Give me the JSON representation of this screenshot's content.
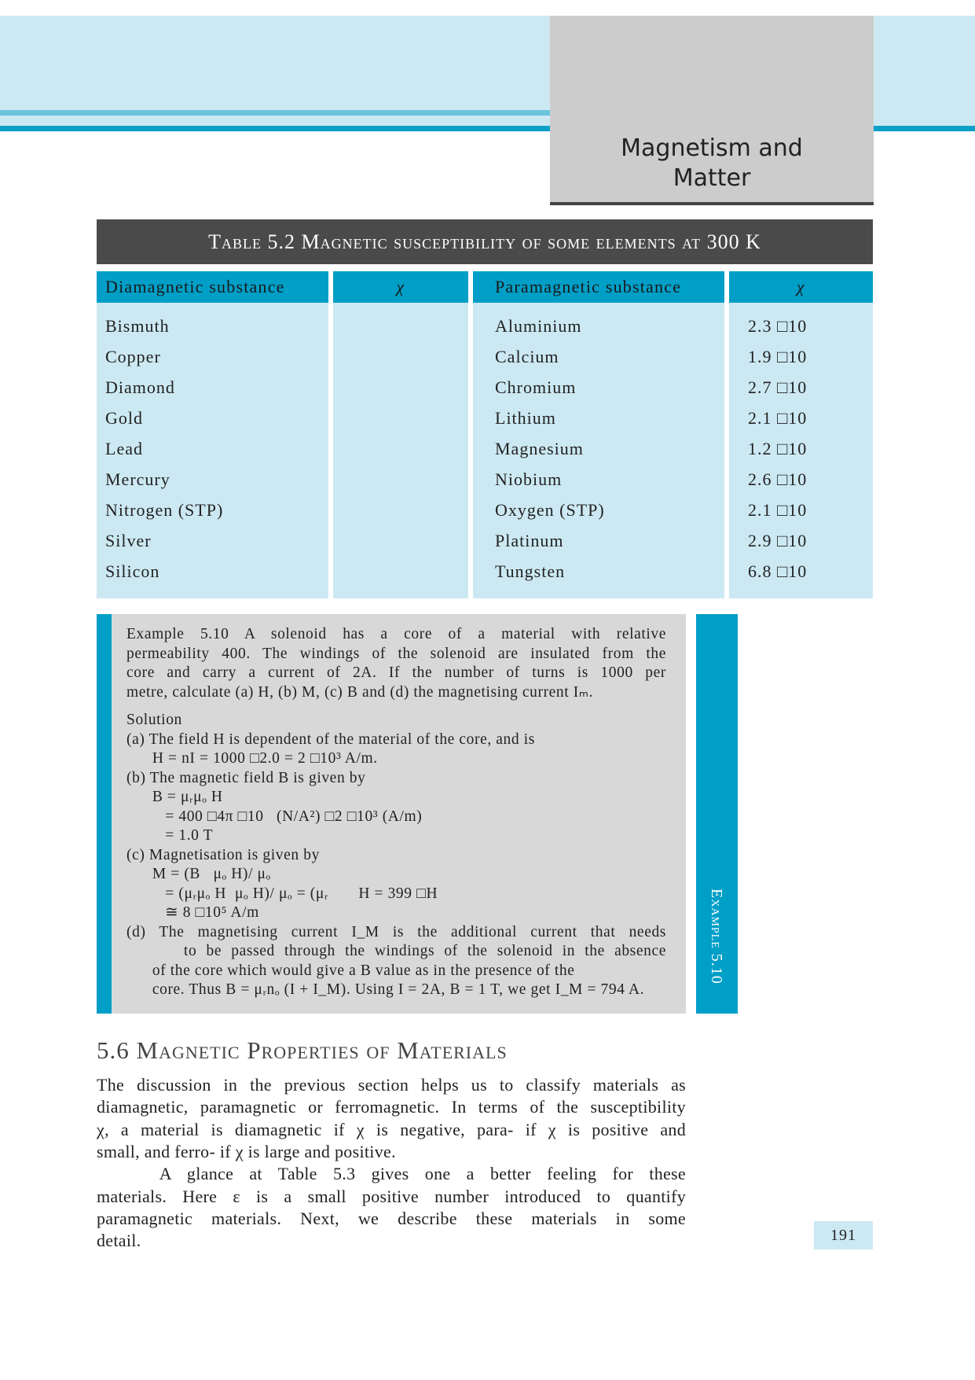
{
  "chapter": {
    "title_line1": "Magnetism and",
    "title_line2": "Matter"
  },
  "table": {
    "title": "Table 5.2  Magnetic susceptibility of some elements at 300 K",
    "headers": [
      "Diamagnetic substance",
      "χ",
      "Paramagnetic substance",
      "χ"
    ],
    "diamagnetic": [
      "Bismuth",
      "Copper",
      "Diamond",
      "Gold",
      "Lead",
      "Mercury",
      "Nitrogen (STP)",
      "Silver",
      "Silicon"
    ],
    "diamagnetic_chi": [
      "",
      "",
      "",
      "",
      "",
      "",
      "",
      "",
      ""
    ],
    "paramagnetic": [
      "Aluminium",
      "Calcium",
      "Chromium",
      "Lithium",
      "Magnesium",
      "Niobium",
      "Oxygen (STP)",
      "Platinum",
      "Tungsten"
    ],
    "paramagnetic_chi": [
      "2.3 □10",
      "1.9 □10",
      "2.7 □10",
      "2.1 □10",
      "1.2 □10",
      "2.6 □10",
      "2.1 □10",
      "2.9 □10",
      "6.8 □10"
    ]
  },
  "example": {
    "side_label": "Example 5.10",
    "question_lines": [
      "Example 5.10 A solenoid has a core of a material with relative",
      "permeability 400. The windings of the solenoid are insulated from the",
      "core and carry a current of 2A. If the number of turns is 1000 per",
      "metre, calculate (a) H, (b) M, (c) B and (d) the magnetising current Iₘ."
    ],
    "solution_label": "Solution",
    "solution_lines": [
      "(a) The field H is dependent of the material of the core, and is",
      "      H = nI = 1000 □2.0 = 2 □10³ A/m.",
      "(b) The magnetic field B is given by",
      "      B = μᵣμₒ H",
      "         = 400 □4π □10   (N/A²) □2 □10³ (A/m)",
      "         = 1.0 T",
      "(c) Magnetisation is given by",
      "      M = (B   μₒ H)/ μₒ",
      "         = (μᵣμₒ H  μₒ H)/ μₒ = (μᵣ       H = 399 □H",
      "         ≅ 8 □10⁵ A/m",
      "(d) The magnetising current I_M is the additional current that needs",
      "      to be passed through the windings of the solenoid in the absence",
      "      of the core which would give a B value as in the presence of the",
      "      core. Thus B = μᵣnₒ (I + I_M). Using I = 2A, B = 1 T, we get I_M = 794 A."
    ]
  },
  "section": {
    "heading": "5.6  Magnetic Properties of Materials",
    "lines": [
      "The discussion in the previous section helps us to classify materials as",
      "diamagnetic, paramagnetic or ferromagnetic. In terms of the susceptibility",
      "χ, a material is diamagnetic if χ is negative, para- if χ is positive and",
      "small, and ferro- if χ is large and positive.",
      "    A glance at Table 5.3 gives one a better feeling for these",
      "materials. Here ε is a small positive number introduced to quantify",
      "paramagnetic materials. Next, we describe these materials in some",
      "detail."
    ]
  },
  "page_number": "191",
  "colors": {
    "accent": "#009fc7",
    "light_blue": "#cce9f3",
    "gray": "#d8d8d8",
    "dark": "#4a4a4a"
  }
}
